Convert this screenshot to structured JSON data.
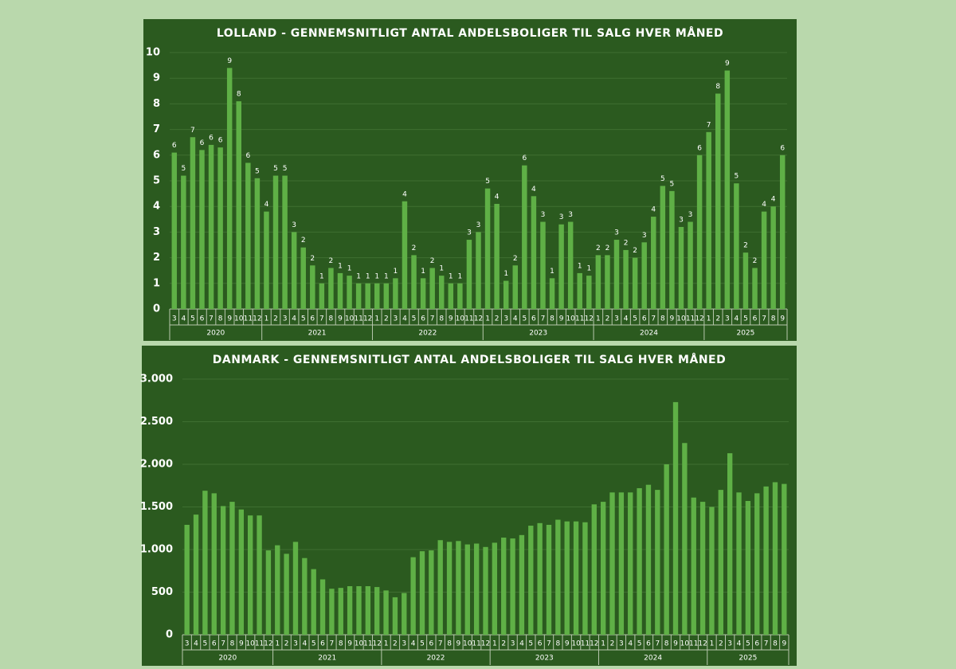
{
  "chart_data": [
    {
      "type": "bar",
      "title": "LOLLAND  - GENNEMSNITLIGT ANTAL ANDELSBOLIGER TIL SALG HVER MÅNED",
      "color": "#5fb046",
      "grid": true,
      "ylim": [
        0,
        10
      ],
      "yticks": [
        0,
        1,
        2,
        3,
        4,
        5,
        6,
        7,
        8,
        9,
        10
      ],
      "groups": [
        {
          "name": "2020",
          "months": [
            "3",
            "4",
            "5",
            "6",
            "7",
            "8",
            "9",
            "10",
            "11",
            "12"
          ],
          "values": [
            6.1,
            5.2,
            6.7,
            6.2,
            6.4,
            6.3,
            9.4,
            8.1,
            5.7,
            5.1
          ],
          "value_labels": [
            "6",
            "5",
            "7",
            "6",
            "6",
            "6",
            "9",
            "8",
            "6",
            "5"
          ]
        },
        {
          "name": "2021",
          "months": [
            "1",
            "2",
            "3",
            "4",
            "5",
            "6",
            "7",
            "8",
            "9",
            "10",
            "11",
            "12"
          ],
          "values": [
            3.8,
            5.2,
            5.2,
            3.0,
            2.4,
            1.7,
            1.0,
            1.6,
            1.4,
            1.3,
            1.0,
            1.0
          ],
          "value_labels": [
            "4",
            "5",
            "5",
            "3",
            "2",
            "2",
            "1",
            "2",
            "1",
            "1",
            "1",
            "1"
          ]
        },
        {
          "name": "2022",
          "months": [
            "1",
            "2",
            "3",
            "4",
            "5",
            "6",
            "7",
            "8",
            "9",
            "10",
            "11",
            "12"
          ],
          "values": [
            1.0,
            1.0,
            1.2,
            4.2,
            2.1,
            1.2,
            1.6,
            1.3,
            1.0,
            1.0,
            2.7,
            3.0
          ],
          "value_labels": [
            "1",
            "1",
            "1",
            "4",
            "2",
            "1",
            "2",
            "1",
            "1",
            "1",
            "3",
            "3"
          ]
        },
        {
          "name": "2023",
          "months": [
            "1",
            "2",
            "3",
            "4",
            "5",
            "6",
            "7",
            "8",
            "9",
            "10",
            "11",
            "12"
          ],
          "values": [
            4.7,
            4.1,
            1.1,
            1.7,
            5.6,
            4.4,
            3.4,
            1.2,
            3.3,
            3.4,
            1.4,
            1.3
          ],
          "value_labels": [
            "5",
            "4",
            "1",
            "2",
            "6",
            "4",
            "3",
            "1",
            "3",
            "3",
            "1",
            "1"
          ]
        },
        {
          "name": "2024",
          "months": [
            "1",
            "2",
            "3",
            "4",
            "5",
            "6",
            "7",
            "8",
            "9",
            "10",
            "11",
            "12"
          ],
          "values": [
            2.1,
            2.1,
            2.7,
            2.3,
            2.0,
            2.6,
            3.6,
            4.8,
            4.6,
            3.2,
            3.4,
            6.0
          ],
          "value_labels": [
            "2",
            "2",
            "3",
            "2",
            "2",
            "3",
            "4",
            "5",
            "5",
            "3",
            "3",
            "6"
          ]
        },
        {
          "name": "2025",
          "months": [
            "1",
            "2",
            "3",
            "4",
            "5",
            "6",
            "7",
            "8",
            "9"
          ],
          "values": [
            6.9,
            8.4,
            9.3,
            4.9,
            2.2,
            1.6,
            3.8,
            4.0,
            6.0
          ],
          "value_labels": [
            "7",
            "8",
            "9",
            "5",
            "2",
            "2",
            "4",
            "4",
            "6"
          ]
        }
      ]
    },
    {
      "type": "bar",
      "title": "DANMARK - GENNEMSNITLIGT ANTAL ANDELSBOLIGER TIL SALG HVER MÅNED",
      "color": "#5fb046",
      "grid": true,
      "ylim": [
        0,
        3000
      ],
      "yticks": [
        0,
        {
          "value": 500,
          "label": "500"
        },
        {
          "value": 1000,
          "label": "1.000"
        },
        {
          "value": 1500,
          "label": "1.500"
        },
        {
          "value": 2000,
          "label": "2.000"
        },
        {
          "value": 2500,
          "label": "2.500"
        },
        {
          "value": 3000,
          "label": "3.000"
        }
      ],
      "groups": [
        {
          "name": "2020",
          "months": [
            "3",
            "4",
            "5",
            "6",
            "7",
            "8",
            "9",
            "10",
            "11",
            "12"
          ],
          "values": [
            1290,
            1410,
            1690,
            1660,
            1510,
            1560,
            1470,
            1400,
            1400,
            990
          ]
        },
        {
          "name": "2021",
          "months": [
            "1",
            "2",
            "3",
            "4",
            "5",
            "6",
            "7",
            "8",
            "9",
            "10",
            "11",
            "12"
          ],
          "values": [
            1050,
            950,
            1090,
            900,
            770,
            650,
            540,
            550,
            570,
            570,
            570,
            560
          ]
        },
        {
          "name": "2022",
          "months": [
            "1",
            "2",
            "3",
            "4",
            "5",
            "6",
            "7",
            "8",
            "9",
            "10",
            "11",
            "12"
          ],
          "values": [
            520,
            440,
            490,
            910,
            980,
            990,
            1110,
            1090,
            1100,
            1060,
            1070,
            1030
          ]
        },
        {
          "name": "2023",
          "months": [
            "1",
            "2",
            "3",
            "4",
            "5",
            "6",
            "7",
            "8",
            "9",
            "10",
            "11",
            "12"
          ],
          "values": [
            1080,
            1140,
            1130,
            1170,
            1280,
            1310,
            1290,
            1350,
            1330,
            1330,
            1320,
            1530
          ]
        },
        {
          "name": "2024",
          "months": [
            "1",
            "2",
            "3",
            "4",
            "5",
            "6",
            "7",
            "8",
            "9",
            "10",
            "11",
            "12"
          ],
          "values": [
            1560,
            1670,
            1670,
            1670,
            1720,
            1760,
            1700,
            2000,
            2730,
            2250,
            1610,
            1560
          ]
        },
        {
          "name": "2025",
          "months": [
            "1",
            "2",
            "3",
            "4",
            "5",
            "6",
            "7",
            "8",
            "9"
          ],
          "values": [
            1500,
            1700,
            2130,
            1670,
            1570,
            1660,
            1740,
            1790,
            1770
          ]
        }
      ]
    }
  ]
}
